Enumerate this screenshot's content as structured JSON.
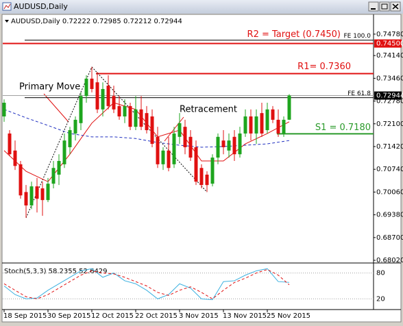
{
  "window_title": "AUDUSD,Daily",
  "chart_data": {
    "type": "candlestick",
    "header": "AUDUSD,Daily  0.72222 0.72985 0.72212 0.72944",
    "categories": [
      "18 Sep 2015",
      null,
      null,
      null,
      null,
      null,
      null,
      null,
      "30 Sep 2015",
      null,
      null,
      null,
      null,
      null,
      null,
      null,
      "12 Oct 2015",
      null,
      null,
      null,
      null,
      null,
      null,
      null,
      "22 Oct 2015",
      null,
      null,
      null,
      null,
      null,
      null,
      null,
      "3 Nov 2015",
      null,
      null,
      null,
      null,
      null,
      null,
      null,
      "13 Nov 2015",
      null,
      null,
      null,
      null,
      null,
      null,
      null,
      "25 Nov 2015",
      null,
      null,
      null,
      null
    ],
    "open": [
      0.7232,
      0.7181,
      0.713,
      0.7089,
      0.7006,
      0.6966,
      0.7023,
      0.7017,
      0.6982,
      0.7031,
      0.7058,
      0.7089,
      0.714,
      0.7181,
      0.7212,
      0.7293,
      0.7345,
      0.7334,
      0.7253,
      0.7324,
      0.7293,
      0.7263,
      0.7232,
      0.7263,
      0.7201,
      0.7253,
      0.7242,
      0.7232,
      0.7171,
      0.7089,
      0.713,
      0.7089,
      0.7171,
      0.7201,
      0.7171,
      0.714,
      0.7078,
      0.7058,
      0.7031,
      0.7109,
      0.716,
      0.713,
      0.7171,
      0.7119,
      0.7181,
      0.7232,
      0.7181,
      0.7242,
      0.7191,
      0.7253,
      0.7222,
      0.7181,
      0.72222
    ],
    "high": [
      0.7283,
      0.7191,
      0.716,
      0.7099,
      0.7027,
      0.7037,
      0.7048,
      0.7037,
      0.7048,
      0.7099,
      0.7119,
      0.7181,
      0.7201,
      0.7232,
      0.7304,
      0.7355,
      0.738,
      0.7365,
      0.7334,
      0.7355,
      0.7324,
      0.7293,
      0.7283,
      0.7273,
      0.7293,
      0.7293,
      0.7263,
      0.7253,
      0.7201,
      0.714,
      0.7171,
      0.7201,
      0.7242,
      0.7222,
      0.7191,
      0.716,
      0.7089,
      0.7068,
      0.7119,
      0.7181,
      0.7191,
      0.7181,
      0.7191,
      0.7201,
      0.7253,
      0.7253,
      0.7253,
      0.7273,
      0.7273,
      0.7263,
      0.7253,
      0.7232,
      0.72985
    ],
    "low": [
      0.7216,
      0.7113,
      0.7072,
      0.6986,
      0.6929,
      0.6955,
      0.6945,
      0.6935,
      0.6976,
      0.7017,
      0.7027,
      0.7078,
      0.7119,
      0.716,
      0.7191,
      0.7273,
      0.7304,
      0.7242,
      0.7232,
      0.7253,
      0.7242,
      0.7222,
      0.7212,
      0.7191,
      0.7191,
      0.7191,
      0.7181,
      0.714,
      0.7078,
      0.7072,
      0.7068,
      0.7078,
      0.715,
      0.7119,
      0.7099,
      0.7027,
      0.7017,
      0.7006,
      0.7023,
      0.7089,
      0.7119,
      0.7109,
      0.7099,
      0.7109,
      0.7171,
      0.716,
      0.715,
      0.7171,
      0.7181,
      0.7212,
      0.7171,
      0.7171,
      0.72212
    ],
    "close": [
      0.7273,
      0.7119,
      0.7084,
      0.6996,
      0.6966,
      0.7023,
      0.6986,
      0.6982,
      0.7031,
      0.7078,
      0.7099,
      0.716,
      0.7191,
      0.7222,
      0.7293,
      0.7345,
      0.7314,
      0.7253,
      0.7314,
      0.7263,
      0.7253,
      0.7232,
      0.7263,
      0.7201,
      0.7253,
      0.7201,
      0.7191,
      0.715,
      0.7089,
      0.713,
      0.7078,
      0.7181,
      0.7212,
      0.714,
      0.7109,
      0.7037,
      0.7027,
      0.7027,
      0.7109,
      0.7171,
      0.714,
      0.716,
      0.7119,
      0.7181,
      0.7232,
      0.7181,
      0.7232,
      0.7181,
      0.7253,
      0.7222,
      0.7181,
      0.7222,
      0.72944
    ],
    "up_color": "#1ea51e",
    "down_color": "#e01010",
    "ylim": [
      0.6796,
      0.7535
    ],
    "yticks": [
      {
        "value": 0.7478,
        "label": "0.74780"
      },
      {
        "value": 0.7414,
        "label": "0.74140"
      },
      {
        "value": 0.7346,
        "label": "0.73460"
      },
      {
        "value": 0.7278,
        "label": "0.72780"
      },
      {
        "value": 0.721,
        "label": "0.72100"
      },
      {
        "value": 0.7142,
        "label": "0.71420"
      },
      {
        "value": 0.7074,
        "label": "0.70740"
      },
      {
        "value": 0.7006,
        "label": "0.70060"
      },
      {
        "value": 0.6938,
        "label": "0.69380"
      },
      {
        "value": 0.687,
        "label": "0.68700"
      },
      {
        "value": 0.6802,
        "label": "0.68020"
      }
    ],
    "series": [
      {
        "color": "#e01010",
        "style": "solid",
        "x": [
          0,
          4,
          8,
          12,
          16,
          20,
          24,
          28,
          32,
          36,
          40,
          44,
          48,
          52
        ],
        "values": [
          0.713,
          0.7068,
          0.7037,
          0.7119,
          0.7212,
          0.7273,
          0.7253,
          0.7171,
          0.7191,
          0.7099,
          0.7099,
          0.715,
          0.7181,
          0.7216
        ]
      },
      {
        "color": "#1f2fc0",
        "style": "dashed",
        "x": [
          0,
          4,
          8,
          12,
          16,
          20,
          24,
          28,
          32,
          36,
          40,
          44,
          48,
          52
        ],
        "values": [
          0.7253,
          0.7228,
          0.7205,
          0.7181,
          0.7171,
          0.7171,
          0.7166,
          0.7154,
          0.7146,
          0.714,
          0.7142,
          0.7146,
          0.715,
          0.716
        ]
      }
    ],
    "levels": [
      {
        "value": 0.746,
        "text": "FE 100.0",
        "color": "#000000",
        "width": 1,
        "from": 4
      },
      {
        "value": 0.745,
        "text": "R2 = Target (0.7450)",
        "label": "0.74500",
        "label_background": "#e01010",
        "color": "#e01010",
        "width": 2,
        "from": 0
      },
      {
        "value": 0.736,
        "text": "R1= 0.7360",
        "color": "#e01010",
        "width": 2,
        "from": 17
      },
      {
        "value": 0.7288,
        "text": "FE 61.8",
        "color": "#000000",
        "width": 1,
        "from": 4
      },
      {
        "value": 0.72944,
        "label": "0.72944",
        "label_background": "#000000",
        "color": "#a0a0a0",
        "width": 1,
        "from": 0
      },
      {
        "value": 0.718,
        "text": "S1 = 0.7180",
        "color": "#2a9a2a",
        "width": 2,
        "from": 50
      }
    ],
    "trendlines": [
      {
        "x": [
          4,
          16
        ],
        "values": [
          0.6929,
          0.738
        ]
      },
      {
        "x": [
          16,
          37
        ],
        "values": [
          0.738,
          0.7006
        ]
      }
    ],
    "annotations": [
      "Primary Move",
      "Retracement"
    ],
    "indicator": {
      "type": "line",
      "title": "Stoch(5,3,3) 58.2355 52.6429",
      "ylim": [
        0,
        100
      ],
      "yticks": [
        20,
        80
      ],
      "x": [
        0,
        2,
        4,
        6,
        8,
        10,
        12,
        14,
        16,
        18,
        20,
        22,
        24,
        26,
        28,
        30,
        32,
        34,
        36,
        38,
        40,
        42,
        44,
        46,
        48,
        50,
        52
      ],
      "series": [
        {
          "color": "#3ab0e0",
          "style": "solid",
          "values": [
            50,
            30,
            20,
            22,
            40,
            55,
            70,
            85,
            90,
            70,
            80,
            62,
            55,
            40,
            20,
            30,
            55,
            45,
            20,
            18,
            60,
            62,
            75,
            85,
            90,
            60,
            58.2355
          ]
        },
        {
          "color": "#e01010",
          "style": "dashed",
          "values": [
            55,
            40,
            25,
            20,
            30,
            45,
            60,
            75,
            85,
            80,
            78,
            70,
            60,
            50,
            35,
            28,
            40,
            48,
            35,
            20,
            40,
            58,
            68,
            80,
            88,
            75,
            52.6429
          ]
        }
      ]
    }
  }
}
